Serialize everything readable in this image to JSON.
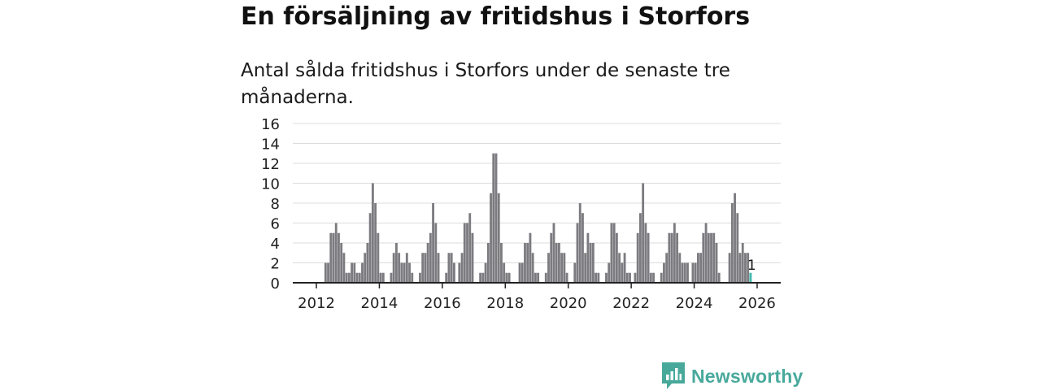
{
  "title": "En försäljning av fritidshus i Storfors",
  "subtitle": "Antal sålda fritidshus i Storfors under de senaste tre månaderna.",
  "brand": {
    "name": "Newsworthy",
    "icon": "newsworthy-logo-icon",
    "color": "#48a99b"
  },
  "colors": {
    "bar": "#7b7b80",
    "highlight": "#3fb7ad",
    "grid": "#dcdcdc",
    "axis": "#222222"
  },
  "chart_data": {
    "type": "bar",
    "title": "En försäljning av fritidshus i Storfors",
    "xlabel": "",
    "ylabel": "",
    "ylim": [
      0,
      16
    ],
    "yticks": [
      "0",
      "2",
      "4",
      "6",
      "8",
      "10",
      "12",
      "14",
      "16"
    ],
    "xlim": [
      2011.25,
      2026.75
    ],
    "xticks": [
      "2012",
      "2014",
      "2016",
      "2018",
      "2020",
      "2022",
      "2024",
      "2026"
    ],
    "grid": true,
    "bar_width_months": 0.88,
    "start": {
      "year": 2012,
      "month": 4
    },
    "values": [
      2,
      2,
      5,
      5,
      6,
      5,
      4,
      3,
      1,
      1,
      2,
      2,
      1,
      1,
      2,
      3,
      4,
      7,
      10,
      8,
      5,
      1,
      1,
      0,
      0,
      1,
      3,
      4,
      3,
      2,
      2,
      3,
      2,
      1,
      0,
      0,
      1,
      3,
      3,
      4,
      5,
      8,
      6,
      3,
      0,
      0,
      1,
      3,
      3,
      2,
      0,
      2,
      3,
      6,
      6,
      7,
      5,
      0,
      0,
      1,
      1,
      2,
      4,
      9,
      13,
      13,
      9,
      4,
      2,
      1,
      1,
      0,
      0,
      0,
      2,
      2,
      4,
      4,
      5,
      3,
      1,
      1,
      0,
      0,
      1,
      3,
      5,
      6,
      4,
      4,
      3,
      3,
      1,
      0,
      0,
      2,
      6,
      8,
      7,
      3,
      5,
      4,
      4,
      1,
      1,
      0,
      0,
      1,
      2,
      6,
      6,
      5,
      3,
      2,
      3,
      1,
      1,
      0,
      1,
      5,
      7,
      10,
      6,
      5,
      1,
      1,
      0,
      0,
      1,
      2,
      3,
      5,
      5,
      6,
      5,
      3,
      2,
      2,
      2,
      0,
      2,
      2,
      3,
      3,
      5,
      6,
      5,
      5,
      5,
      4,
      1,
      0,
      0,
      0,
      3,
      8,
      9,
      7,
      3,
      4,
      3,
      3,
      1
    ],
    "highlight_last": true,
    "annotations": [
      {
        "label": "1",
        "target": "last-bar"
      }
    ]
  }
}
